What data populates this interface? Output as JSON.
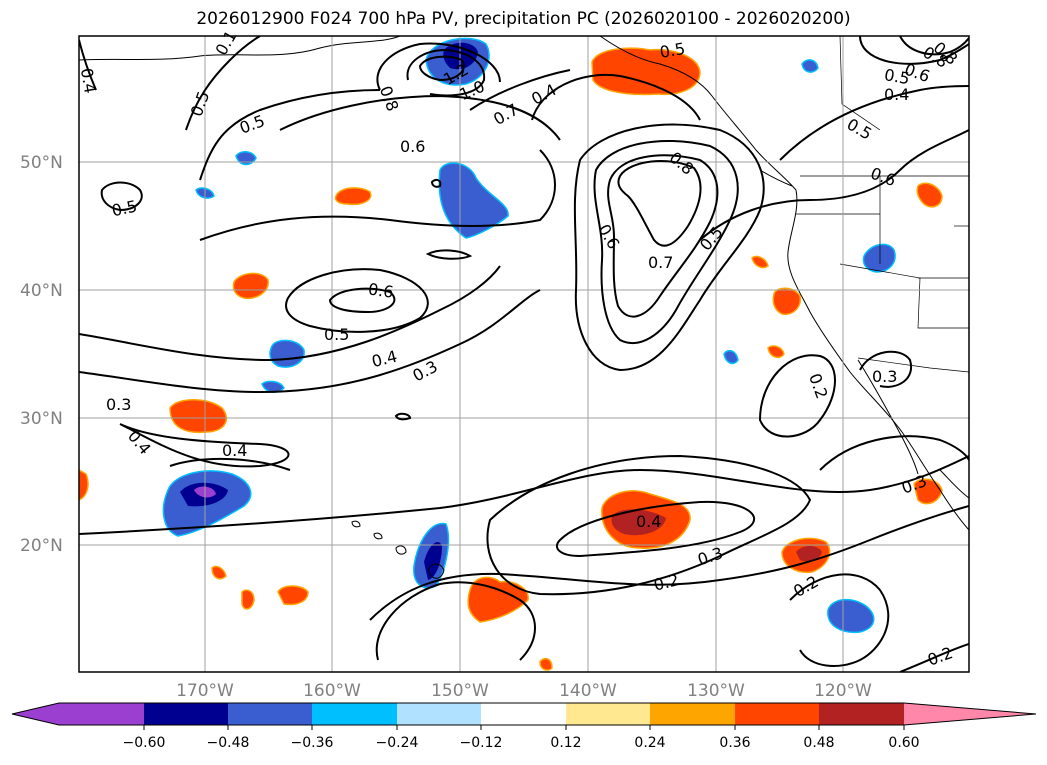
{
  "title": "2026012900 F024 700 hPa PV, precipitation PC (2026020100 - 2026020200)",
  "lat_labels": [
    "50°N",
    "40°N",
    "30°N",
    "20°N"
  ],
  "lon_labels": [
    "170°W",
    "160°W",
    "150°W",
    "140°W",
    "130°W",
    "120°W"
  ],
  "colorbar": {
    "ticks": [
      "−0.60",
      "−0.48",
      "−0.36",
      "−0.24",
      "−0.12",
      "0.12",
      "0.24",
      "0.36",
      "0.48",
      "0.60"
    ],
    "colors": [
      "#9a3fd0",
      "#000090",
      "#3a5ed0",
      "#00bfff",
      "#b0e2ff",
      "#ffffff",
      "#ffe890",
      "#ffa500",
      "#ff4500",
      "#b22222",
      "#ff88aa"
    ]
  },
  "contour_labels": [
    "0.4",
    "0.5",
    "0.5",
    "0.6",
    "0.5",
    "0.6",
    "0.5",
    "0.4",
    "0.3",
    "0.3",
    "0.4",
    "0.4",
    "1.2",
    "1.0",
    "0.7",
    "0.8",
    "0.4",
    "0.5",
    "0.8",
    "0.6",
    "0.7",
    "0.5",
    "0.8",
    "0.6",
    "0.5",
    "0.4",
    "0.5",
    "0.6",
    "0.2",
    "0.3",
    "0.4",
    "0.3",
    "0.2",
    "0.2",
    "0.3",
    "0.2",
    "0.8",
    "0.1"
  ],
  "colors": {
    "contour": "#000000",
    "grid": "#a0a0a0",
    "axis_label": "#808080"
  }
}
